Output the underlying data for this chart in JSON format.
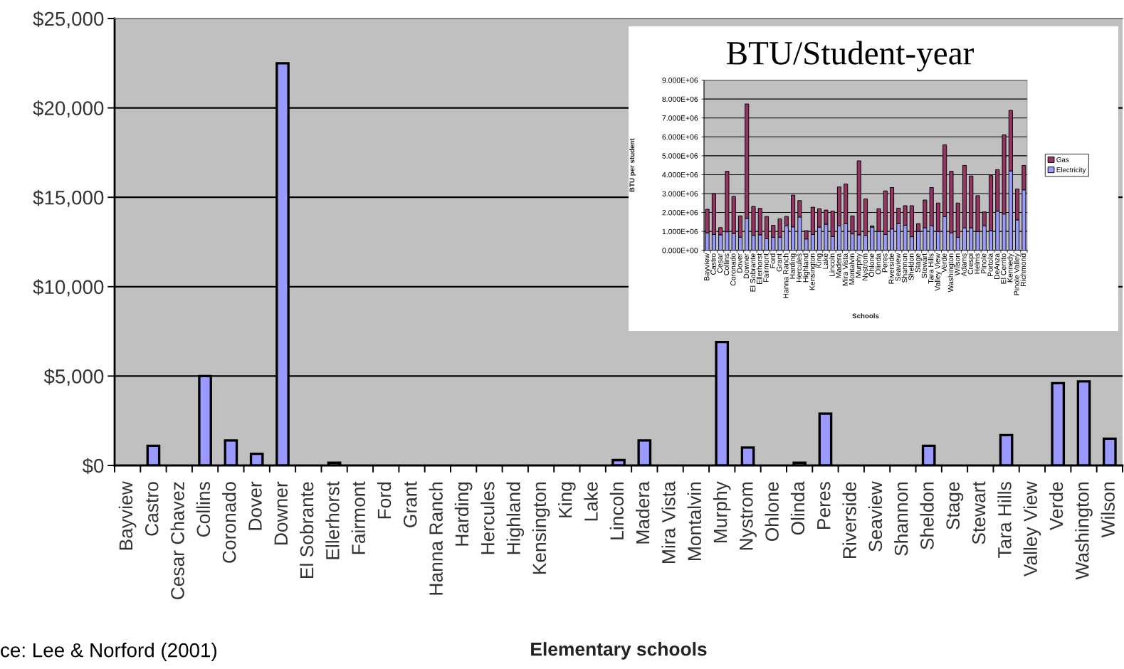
{
  "chart_data": [
    {
      "type": "bar",
      "xlabel": "Elementary schools",
      "categories": [
        "Bayview",
        "Castro",
        "Cesar Chavez",
        "Collins",
        "Coronado",
        "Dover",
        "Downer",
        "El Sobrante",
        "Ellerhorst",
        "Fairmont",
        "Ford",
        "Grant",
        "Hanna Ranch",
        "Harding",
        "Hercules",
        "Highland",
        "Kensington",
        "King",
        "Lake",
        "Lincoln",
        "Madera",
        "Mira Vista",
        "Montalvin",
        "Murphy",
        "Nystrom",
        "Ohlone",
        "Olinda",
        "Peres",
        "Riverside",
        "Seaview",
        "Shannon",
        "Sheldon",
        "Stage",
        "Stewart",
        "Tara Hills",
        "Valley View",
        "Verde",
        "Washington",
        "Wilson"
      ],
      "values": [
        null,
        1100,
        null,
        5000,
        1400,
        650,
        22500,
        null,
        150,
        null,
        null,
        null,
        null,
        null,
        null,
        null,
        null,
        null,
        null,
        300,
        1400,
        null,
        null,
        6900,
        1000,
        null,
        150,
        2900,
        null,
        null,
        null,
        1100,
        null,
        null,
        1700,
        null,
        4600,
        4700,
        1500
      ],
      "color": "#9999ff",
      "ylim": [
        0,
        25000
      ],
      "yticks": [
        {
          "value": 0,
          "label": "$0"
        },
        {
          "value": 5000,
          "label": "$5,000"
        },
        {
          "value": 10000,
          "label": "$10,000"
        },
        {
          "value": 15000,
          "label": "$15,000"
        },
        {
          "value": 20000,
          "label": "$20,000"
        },
        {
          "value": 25000,
          "label": "$25,000"
        }
      ],
      "grid": "y",
      "annotations": [
        "ce: Lee & Norford (2001)"
      ]
    },
    {
      "type": "bar",
      "stacked": true,
      "title": "BTU/Student-year",
      "xlabel": "Schools",
      "ylabel": "BTU per student",
      "categories": [
        "Bayview",
        "Castro",
        "Cesar",
        "Collins",
        "Coronado",
        "Dover",
        "Downer",
        "El Sobrante",
        "Ellerhorst",
        "Fairmont",
        "Ford",
        "Grant",
        "Hanna Ranch",
        "Harding",
        "Hercules",
        "Highland",
        "Kensington",
        "King",
        "Lake",
        "Lincoln",
        "Madera",
        "Mira Vista",
        "Montalvin",
        "Murphy",
        "Nystrom",
        "Ohlone",
        "Olinda",
        "Peres",
        "Riverside",
        "Seaview",
        "Shannon",
        "Sheldon",
        "Stage",
        "Stewart",
        "Tara Hills",
        "Valley View",
        "Verde",
        "Washington",
        "Wilson",
        "Adams",
        "Crespi",
        "Helms",
        "Pinole",
        "Portola",
        "DeAnza",
        "El Cerrito",
        "Kennedy",
        "Pinole Valley",
        "Richmond"
      ],
      "series": [
        {
          "name": "Electricity",
          "color": "#9999ff",
          "values": [
            920000,
            840000,
            820000,
            980000,
            880000,
            690000,
            1690000,
            790000,
            820000,
            610000,
            690000,
            690000,
            1290000,
            1240000,
            1760000,
            600000,
            840000,
            1230000,
            1380000,
            730000,
            1290000,
            1410000,
            870000,
            820000,
            790000,
            1230000,
            990000,
            840000,
            1130000,
            1410000,
            1320000,
            720000,
            1000000,
            1190000,
            1290000,
            990000,
            1780000,
            920000,
            690000,
            1190000,
            1190000,
            990000,
            1290000,
            1040000,
            2070000,
            1920000,
            4200000,
            1610000,
            3200000
          ]
        },
        {
          "name": "Gas",
          "color": "#993366",
          "values": [
            1250000,
            2150000,
            380000,
            3200000,
            1970000,
            1130000,
            6050000,
            1530000,
            1400000,
            1180000,
            630000,
            970000,
            500000,
            1680000,
            870000,
            440000,
            1440000,
            970000,
            750000,
            1340000,
            2060000,
            2100000,
            950000,
            3910000,
            1930000,
            60000,
            1210000,
            2300000,
            2190000,
            820000,
            1040000,
            1640000,
            410000,
            1470000,
            2030000,
            1510000,
            3800000,
            3260000,
            1810000,
            3300000,
            2740000,
            1900000,
            740000,
            2910000,
            2200000,
            4190000,
            3200000,
            1630000,
            1290000
          ]
        }
      ],
      "ylim": [
        0,
        9000000
      ],
      "yticks": [
        {
          "value": 0,
          "label": "0.000E+00"
        },
        {
          "value": 1000000,
          "label": "1.000E+06"
        },
        {
          "value": 2000000,
          "label": "2.000E+06"
        },
        {
          "value": 3000000,
          "label": "3.000E+06"
        },
        {
          "value": 4000000,
          "label": "4.000E+06"
        },
        {
          "value": 5000000,
          "label": "5.000E+06"
        },
        {
          "value": 6000000,
          "label": "6.000E+06"
        },
        {
          "value": 7000000,
          "label": "7.000E+06"
        },
        {
          "value": 8000000,
          "label": "8.000E+06"
        },
        {
          "value": 9000000,
          "label": "9.000E+06"
        }
      ],
      "grid": "y",
      "legend": "right"
    }
  ]
}
